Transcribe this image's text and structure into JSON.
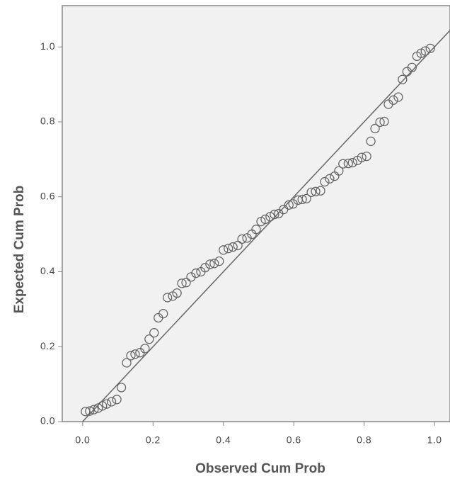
{
  "chart_data": {
    "type": "scatter",
    "xlabel": "Observed Cum Prob",
    "ylabel": "Expected Cum Prob",
    "x": [
      0.008,
      0.02,
      0.032,
      0.044,
      0.056,
      0.068,
      0.082,
      0.097,
      0.11,
      0.125,
      0.137,
      0.149,
      0.163,
      0.177,
      0.189,
      0.203,
      0.215,
      0.229,
      0.241,
      0.256,
      0.268,
      0.282,
      0.294,
      0.308,
      0.322,
      0.336,
      0.348,
      0.362,
      0.374,
      0.388,
      0.4,
      0.414,
      0.427,
      0.441,
      0.453,
      0.467,
      0.481,
      0.493,
      0.507,
      0.519,
      0.533,
      0.545,
      0.557,
      0.571,
      0.586,
      0.598,
      0.612,
      0.624,
      0.636,
      0.65,
      0.662,
      0.676,
      0.688,
      0.702,
      0.716,
      0.728,
      0.74,
      0.755,
      0.767,
      0.781,
      0.793,
      0.807,
      0.819,
      0.831,
      0.845,
      0.857,
      0.869,
      0.883,
      0.897,
      0.909,
      0.922,
      0.936,
      0.95,
      0.962,
      0.974,
      0.988
    ],
    "values": [
      0.027,
      0.028,
      0.032,
      0.036,
      0.042,
      0.047,
      0.053,
      0.059,
      0.091,
      0.157,
      0.176,
      0.18,
      0.184,
      0.195,
      0.22,
      0.237,
      0.277,
      0.288,
      0.331,
      0.335,
      0.343,
      0.369,
      0.371,
      0.386,
      0.396,
      0.4,
      0.411,
      0.42,
      0.422,
      0.428,
      0.458,
      0.462,
      0.466,
      0.47,
      0.487,
      0.49,
      0.5,
      0.513,
      0.534,
      0.54,
      0.547,
      0.553,
      0.555,
      0.566,
      0.578,
      0.581,
      0.591,
      0.593,
      0.595,
      0.612,
      0.614,
      0.616,
      0.64,
      0.648,
      0.655,
      0.669,
      0.688,
      0.689,
      0.691,
      0.697,
      0.705,
      0.708,
      0.748,
      0.782,
      0.799,
      0.801,
      0.847,
      0.858,
      0.866,
      0.913,
      0.934,
      0.945,
      0.975,
      0.983,
      0.989,
      0.996
    ],
    "color": "#666666",
    "xlim": [
      -0.058,
      1.044
    ],
    "ylim": [
      0,
      1.11
    ],
    "xticks": [
      {
        "value": 0,
        "label": "0.0"
      },
      0.2,
      0.4,
      0.6,
      0.8,
      {
        "value": 1,
        "label": "1.0"
      }
    ],
    "yticks": [
      {
        "value": 0,
        "label": "0.0"
      },
      0.2,
      0.4,
      0.6,
      0.8,
      {
        "value": 1,
        "label": "1.0"
      }
    ],
    "reference_line": true,
    "background": "#f1f1f1"
  }
}
